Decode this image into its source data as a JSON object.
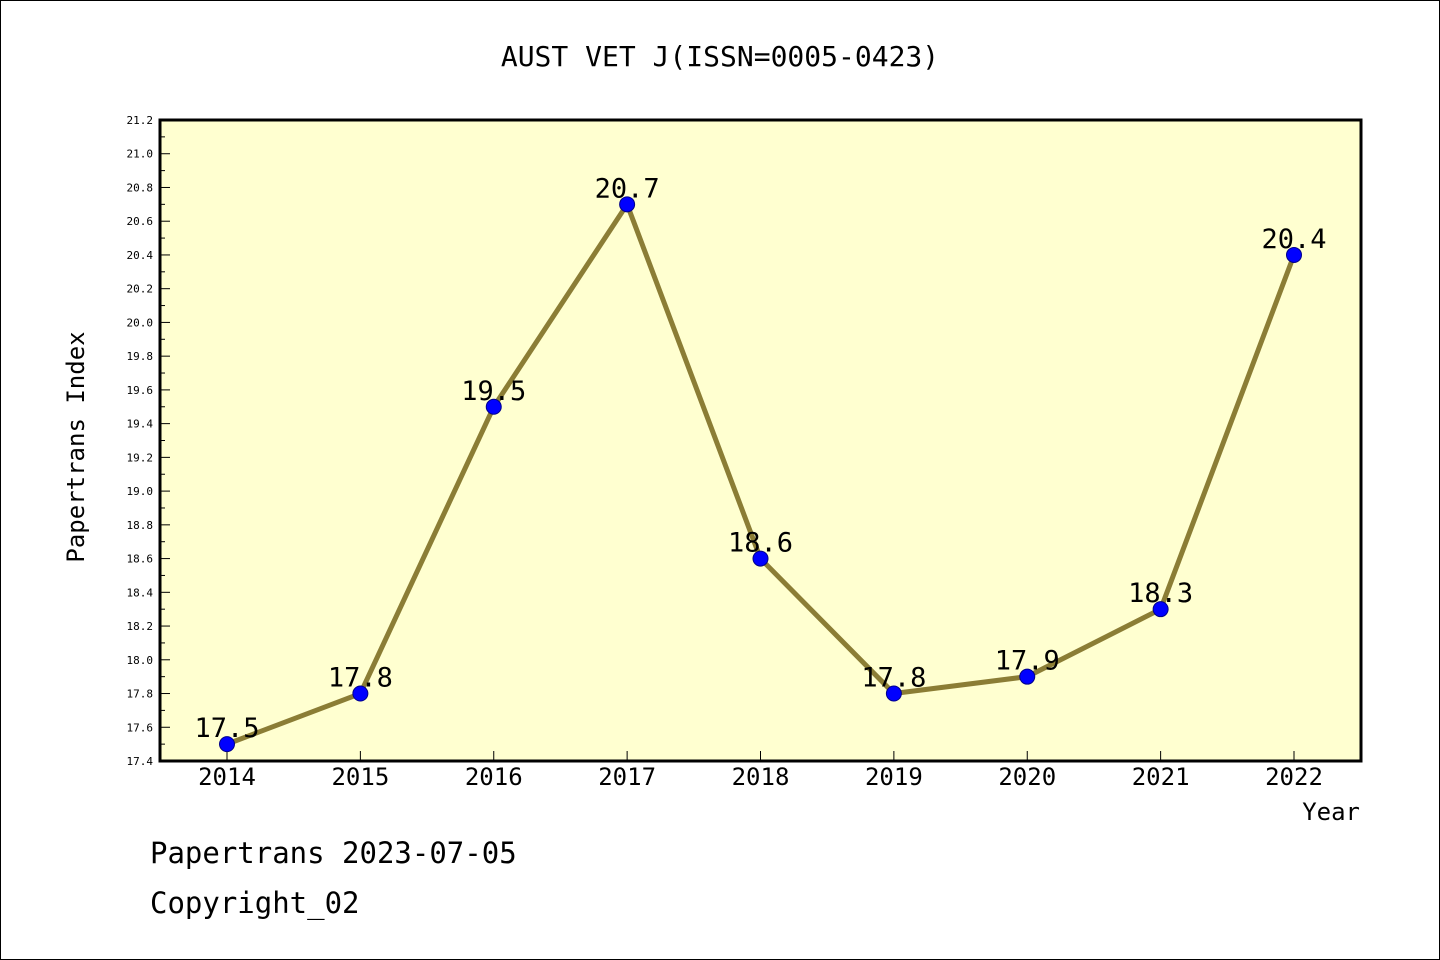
{
  "chart_data": {
    "type": "line",
    "title": "AUST VET J(ISSN=0005-0423)",
    "xlabel": "Year",
    "ylabel": "Papertrans Index",
    "categories": [
      "2014",
      "2015",
      "2016",
      "2017",
      "2018",
      "2019",
      "2020",
      "2021",
      "2022"
    ],
    "series": [
      {
        "values": [
          17.5,
          17.8,
          19.5,
          20.7,
          18.6,
          17.8,
          17.9,
          18.3,
          20.4
        ]
      }
    ],
    "data_labels": [
      "17.5",
      "17.8",
      "19.5",
      "20.7",
      "18.6",
      "17.8",
      "17.9",
      "18.3",
      "20.4"
    ],
    "ylim": [
      17.4,
      21.2
    ],
    "yticks": [
      "17.4",
      "17.6",
      "17.8",
      "18.0",
      "18.2",
      "18.4",
      "18.6",
      "18.8",
      "19.0",
      "19.2",
      "19.4",
      "19.6",
      "19.8",
      "20.0",
      "20.2",
      "20.4",
      "20.6",
      "20.8",
      "21.0",
      "21.2"
    ],
    "grid": false,
    "colors": {
      "plot_background": "#ffffd0",
      "line": "#8b7d35",
      "marker": "#0000ff"
    }
  },
  "footer": {
    "date_line": "Papertrans 2023-07-05",
    "copyright_line": "Copyright_02"
  }
}
